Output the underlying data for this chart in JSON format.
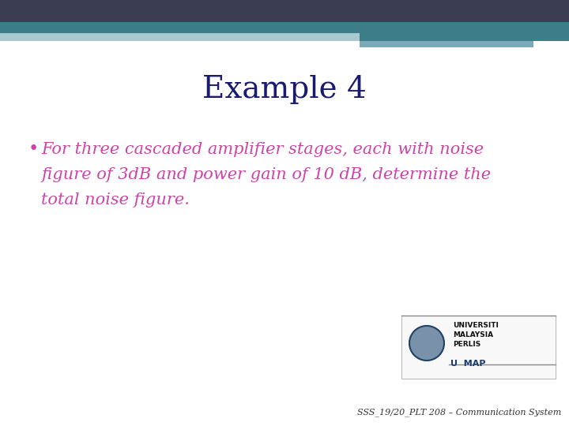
{
  "title": "Example 4",
  "title_color": "#1a1a6e",
  "title_fontsize": 28,
  "bullet_text_line1": "For three cascaded amplifier stages, each with noise",
  "bullet_text_line2": "figure of 3dB and power gain of 10 dB, determine the",
  "bullet_text_line3": "total noise figure.",
  "bullet_color": "#cc44aa",
  "bullet_fontsize": 15,
  "background_color": "#ffffff",
  "header_navy": "#3b3d52",
  "header_teal": "#3d7d87",
  "header_bar1_color": "#aac8d0",
  "header_bar2_color": "#7aaab8",
  "footer_text": "SSS_19/20_PLT 208 – Communication System",
  "footer_color": "#333333",
  "footer_fontsize": 8,
  "logo_uni_text": "UNIVERSITI\nMALAYSIA\nPERLIS",
  "logo_unimap": "U  MAP",
  "fig_width": 7.2,
  "fig_height": 5.4,
  "dpi": 100
}
